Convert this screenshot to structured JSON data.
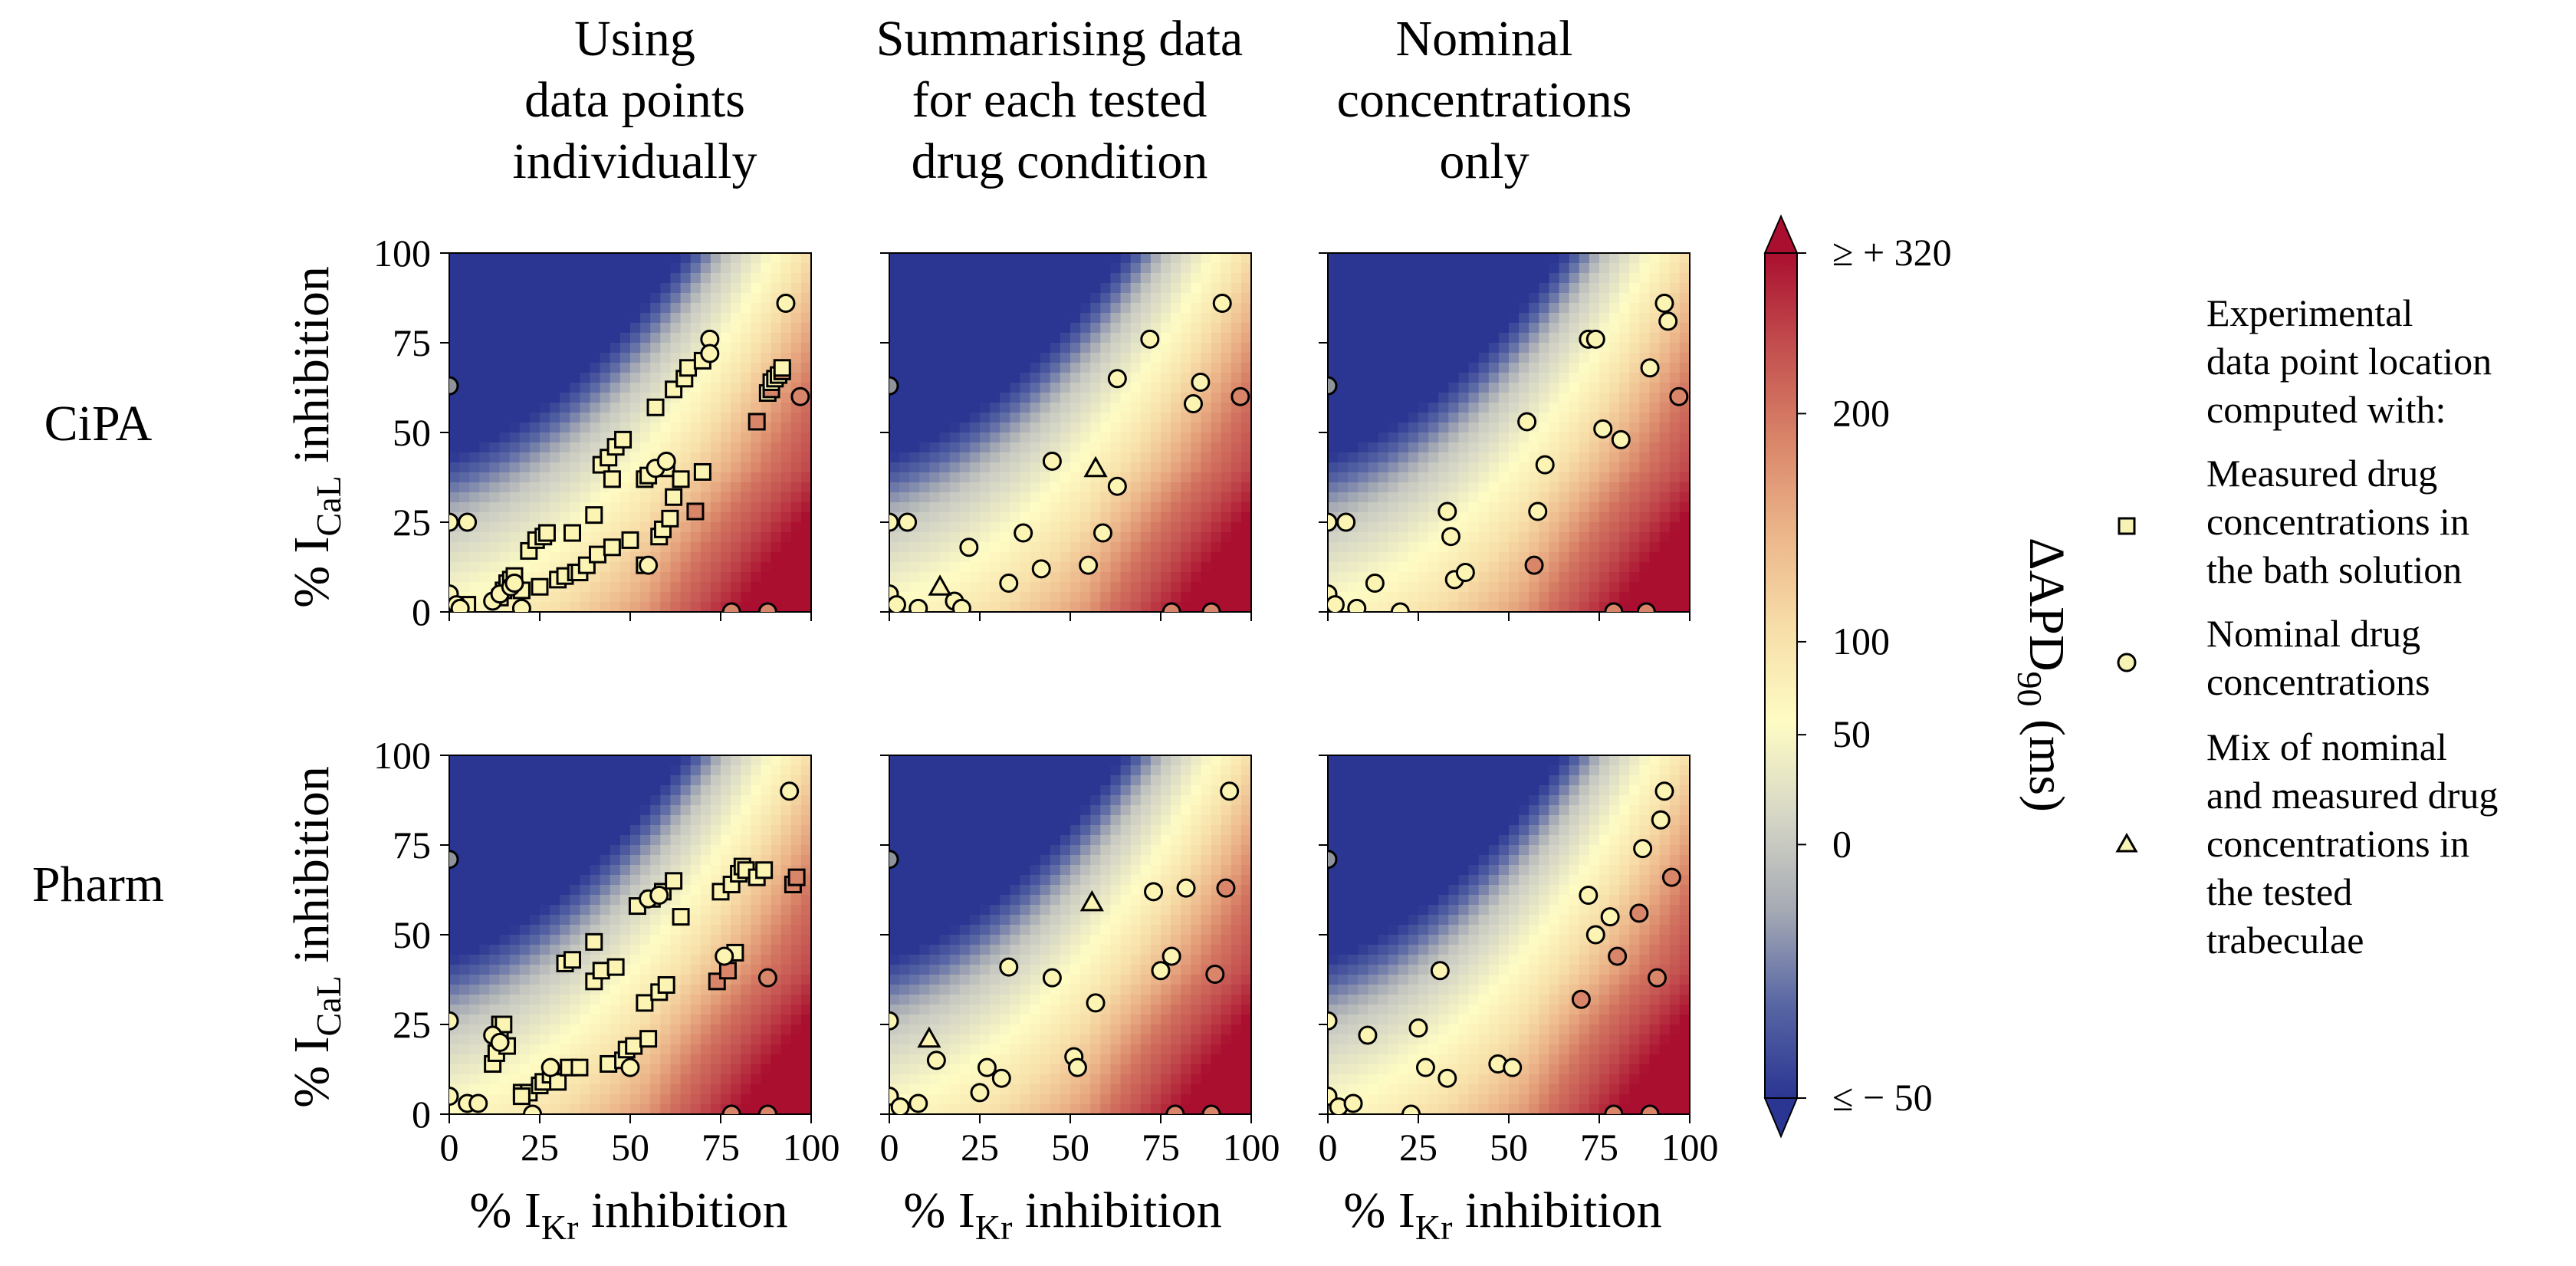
{
  "column_titles": [
    [
      "Using",
      "data points",
      "individually"
    ],
    [
      "Summarising data",
      "for each tested",
      "drug condition"
    ],
    [
      "Nominal",
      "concentrations",
      "only"
    ]
  ],
  "row_labels": [
    "CiPA",
    "Pharm"
  ],
  "axes": {
    "xlabel_prefix": "% I",
    "xlabel_sub": "Kr",
    "xlabel_suffix": " inhibition",
    "ylabel_prefix": "% I",
    "ylabel_sub": "CaL",
    "ylabel_suffix": " inhibition",
    "ticks": [
      "0",
      "25",
      "50",
      "75",
      "100"
    ],
    "xlim": [
      0,
      100
    ],
    "ylim": [
      0,
      100
    ]
  },
  "colorbar": {
    "label_prefix": "ΔAPD",
    "label_sub": "90",
    "label_suffix": " (ms)",
    "tick_labels": [
      "≥ + 320",
      "200",
      "100",
      "50",
      "0",
      "≤ − 50"
    ],
    "tick_values": [
      320,
      200,
      100,
      50,
      0,
      -50
    ],
    "min": -50,
    "max": 320,
    "colors": [
      "#2a3692",
      "#5866a4",
      "#a5aab4",
      "#d6d6c6",
      "#fefcc4",
      "#f7dea8",
      "#ecb68a",
      "#d98569",
      "#c34f4f",
      "#aa0f2f"
    ]
  },
  "legend": {
    "title": [
      "Experimental",
      "data point location",
      "computed with:"
    ],
    "entries": [
      {
        "marker": "square",
        "lines": [
          "Measured drug",
          "concentrations in",
          "the bath solution"
        ]
      },
      {
        "marker": "circle",
        "lines": [
          "Nominal drug",
          "concentrations"
        ]
      },
      {
        "marker": "triangle",
        "lines": [
          "Mix of nominal",
          "and measured drug",
          "concentrations in",
          "the tested",
          "trabeculae"
        ]
      }
    ]
  },
  "chart_data": [
    {
      "type": "scatter",
      "row": "CiPA",
      "column": "Using data points individually",
      "xlim": [
        0,
        100
      ],
      "ylim": [
        0,
        100
      ],
      "series": [
        {
          "marker": "square",
          "points": [
            [
              5,
              2
            ],
            [
              14,
              4
            ],
            [
              15,
              6
            ],
            [
              16,
              8
            ],
            [
              17,
              9
            ],
            [
              18,
              10
            ],
            [
              20,
              6
            ],
            [
              22,
              17
            ],
            [
              24,
              20
            ],
            [
              25,
              7
            ],
            [
              26,
              21
            ],
            [
              27,
              22
            ],
            [
              30,
              9
            ],
            [
              32,
              10
            ],
            [
              34,
              22
            ],
            [
              35,
              11
            ],
            [
              36,
              11
            ],
            [
              38,
              13
            ],
            [
              40,
              27
            ],
            [
              41,
              16
            ],
            [
              42,
              41
            ],
            [
              44,
              43
            ],
            [
              45,
              18
            ],
            [
              46,
              46
            ],
            [
              48,
              48
            ],
            [
              50,
              20
            ],
            [
              54,
              37
            ],
            [
              55,
              38
            ],
            [
              57,
              57
            ],
            [
              58,
              21
            ],
            [
              59,
              23
            ],
            [
              60,
              40
            ],
            [
              61,
              26
            ],
            [
              62,
              32
            ],
            [
              62,
              62
            ],
            [
              64,
              37
            ],
            [
              65,
              65
            ],
            [
              66,
              68
            ],
            [
              68,
              28
            ],
            [
              70,
              70
            ],
            [
              70,
              39
            ],
            [
              85,
              53
            ],
            [
              88,
              61
            ],
            [
              89,
              62
            ],
            [
              89,
              64
            ],
            [
              90,
              65
            ],
            [
              91,
              66
            ],
            [
              92,
              67
            ],
            [
              92,
              68
            ],
            [
              45,
              37
            ],
            [
              54,
              13
            ]
          ]
        },
        {
          "marker": "circle",
          "points": [
            [
              0,
              63
            ],
            [
              0,
              25
            ],
            [
              0,
              5
            ],
            [
              2,
              2
            ],
            [
              3,
              1
            ],
            [
              5,
              25
            ],
            [
              12,
              3
            ],
            [
              14,
              5
            ],
            [
              17,
              7
            ],
            [
              18,
              8
            ],
            [
              20,
              1
            ],
            [
              55,
              13
            ],
            [
              57,
              40
            ],
            [
              60,
              42
            ],
            [
              72,
              76
            ],
            [
              78,
              0
            ],
            [
              88,
              0
            ],
            [
              93,
              86
            ],
            [
              97,
              60
            ],
            [
              72,
              72
            ]
          ]
        }
      ]
    },
    {
      "type": "scatter",
      "row": "CiPA",
      "column": "Summarising data for each tested drug condition",
      "xlim": [
        0,
        100
      ],
      "ylim": [
        0,
        100
      ],
      "series": [
        {
          "marker": "circle",
          "points": [
            [
              0,
              63
            ],
            [
              0,
              25
            ],
            [
              0,
              5
            ],
            [
              2,
              2
            ],
            [
              5,
              25
            ],
            [
              8,
              1
            ],
            [
              18,
              3
            ],
            [
              20,
              1
            ],
            [
              22,
              18
            ],
            [
              33,
              8
            ],
            [
              37,
              22
            ],
            [
              42,
              12
            ],
            [
              45,
              42
            ],
            [
              55,
              13
            ],
            [
              59,
              22
            ],
            [
              63,
              65
            ],
            [
              63,
              35
            ],
            [
              72,
              76
            ],
            [
              78,
              0
            ],
            [
              84,
              58
            ],
            [
              86,
              64
            ],
            [
              89,
              0
            ],
            [
              92,
              86
            ],
            [
              97,
              60
            ]
          ]
        },
        {
          "marker": "triangle",
          "points": [
            [
              14,
              7
            ],
            [
              57,
              40
            ]
          ]
        }
      ]
    },
    {
      "type": "scatter",
      "row": "CiPA",
      "column": "Nominal concentrations only",
      "xlim": [
        0,
        100
      ],
      "ylim": [
        0,
        100
      ],
      "series": [
        {
          "marker": "circle",
          "points": [
            [
              0,
              63
            ],
            [
              0,
              25
            ],
            [
              0,
              5
            ],
            [
              2,
              2
            ],
            [
              5,
              25
            ],
            [
              8,
              1
            ],
            [
              13,
              8
            ],
            [
              20,
              0
            ],
            [
              33,
              28
            ],
            [
              34,
              21
            ],
            [
              35,
              9
            ],
            [
              38,
              11
            ],
            [
              55,
              53
            ],
            [
              57,
              13
            ],
            [
              58,
              28
            ],
            [
              60,
              41
            ],
            [
              72,
              76
            ],
            [
              74,
              76
            ],
            [
              76,
              51
            ],
            [
              79,
              0
            ],
            [
              81,
              48
            ],
            [
              88,
              0
            ],
            [
              89,
              68
            ],
            [
              93,
              86
            ],
            [
              94,
              81
            ],
            [
              97,
              60
            ]
          ]
        }
      ]
    },
    {
      "type": "scatter",
      "row": "Pharm",
      "column": "Using data points individually",
      "xlim": [
        0,
        100
      ],
      "ylim": [
        0,
        100
      ],
      "series": [
        {
          "marker": "square",
          "points": [
            [
              12,
              14
            ],
            [
              13,
              17
            ],
            [
              14,
              22
            ],
            [
              14,
              25
            ],
            [
              15,
              25
            ],
            [
              16,
              19
            ],
            [
              20,
              6
            ],
            [
              22,
              6
            ],
            [
              25,
              8
            ],
            [
              26,
              9
            ],
            [
              28,
              11
            ],
            [
              30,
              9
            ],
            [
              32,
              42
            ],
            [
              33,
              13
            ],
            [
              34,
              43
            ],
            [
              36,
              13
            ],
            [
              40,
              48
            ],
            [
              40,
              37
            ],
            [
              42,
              40
            ],
            [
              44,
              14
            ],
            [
              46,
              41
            ],
            [
              48,
              15
            ],
            [
              49,
              18
            ],
            [
              51,
              19
            ],
            [
              52,
              58
            ],
            [
              54,
              31
            ],
            [
              55,
              21
            ],
            [
              56,
              60
            ],
            [
              58,
              34
            ],
            [
              59,
              62
            ],
            [
              60,
              36
            ],
            [
              62,
              65
            ],
            [
              64,
              55
            ],
            [
              74,
              37
            ],
            [
              75,
              62
            ],
            [
              77,
              40
            ],
            [
              78,
              64
            ],
            [
              79,
              45
            ],
            [
              80,
              67
            ],
            [
              81,
              69
            ],
            [
              82,
              68
            ],
            [
              85,
              66
            ],
            [
              87,
              68
            ],
            [
              95,
              64
            ],
            [
              96,
              66
            ],
            [
              20,
              5
            ]
          ]
        },
        {
          "marker": "circle",
          "points": [
            [
              0,
              71
            ],
            [
              0,
              26
            ],
            [
              0,
              5
            ],
            [
              5,
              3
            ],
            [
              8,
              3
            ],
            [
              12,
              22
            ],
            [
              14,
              20
            ],
            [
              23,
              0
            ],
            [
              28,
              13
            ],
            [
              50,
              13
            ],
            [
              55,
              60
            ],
            [
              58,
              61
            ],
            [
              76,
              44
            ],
            [
              78,
              0
            ],
            [
              88,
              0
            ],
            [
              88,
              38
            ],
            [
              94,
              90
            ]
          ]
        }
      ]
    },
    {
      "type": "scatter",
      "row": "Pharm",
      "column": "Summarising data for each tested drug condition",
      "xlim": [
        0,
        100
      ],
      "ylim": [
        0,
        100
      ],
      "series": [
        {
          "marker": "circle",
          "points": [
            [
              0,
              71
            ],
            [
              0,
              26
            ],
            [
              0,
              5
            ],
            [
              3,
              2
            ],
            [
              8,
              3
            ],
            [
              13,
              15
            ],
            [
              25,
              6
            ],
            [
              27,
              13
            ],
            [
              31,
              10
            ],
            [
              33,
              41
            ],
            [
              45,
              38
            ],
            [
              51,
              16
            ],
            [
              52,
              13
            ],
            [
              57,
              31
            ],
            [
              73,
              62
            ],
            [
              75,
              40
            ],
            [
              78,
              44
            ],
            [
              82,
              63
            ],
            [
              79,
              0
            ],
            [
              89,
              0
            ],
            [
              90,
              39
            ],
            [
              93,
              63
            ],
            [
              94,
              90
            ]
          ]
        },
        {
          "marker": "triangle",
          "points": [
            [
              11,
              21
            ],
            [
              56,
              59
            ]
          ]
        }
      ]
    },
    {
      "type": "scatter",
      "row": "Pharm",
      "column": "Nominal concentrations only",
      "xlim": [
        0,
        100
      ],
      "ylim": [
        0,
        100
      ],
      "series": [
        {
          "marker": "circle",
          "points": [
            [
              0,
              71
            ],
            [
              0,
              26
            ],
            [
              0,
              5
            ],
            [
              3,
              2
            ],
            [
              7,
              3
            ],
            [
              11,
              22
            ],
            [
              23,
              0
            ],
            [
              25,
              24
            ],
            [
              27,
              13
            ],
            [
              31,
              40
            ],
            [
              33,
              10
            ],
            [
              47,
              14
            ],
            [
              51,
              13
            ],
            [
              70,
              32
            ],
            [
              72,
              61
            ],
            [
              74,
              50
            ],
            [
              78,
              55
            ],
            [
              80,
              44
            ],
            [
              79,
              0
            ],
            [
              86,
              56
            ],
            [
              87,
              74
            ],
            [
              89,
              0
            ],
            [
              91,
              38
            ],
            [
              92,
              82
            ],
            [
              93,
              90
            ],
            [
              95,
              66
            ]
          ]
        }
      ]
    }
  ]
}
